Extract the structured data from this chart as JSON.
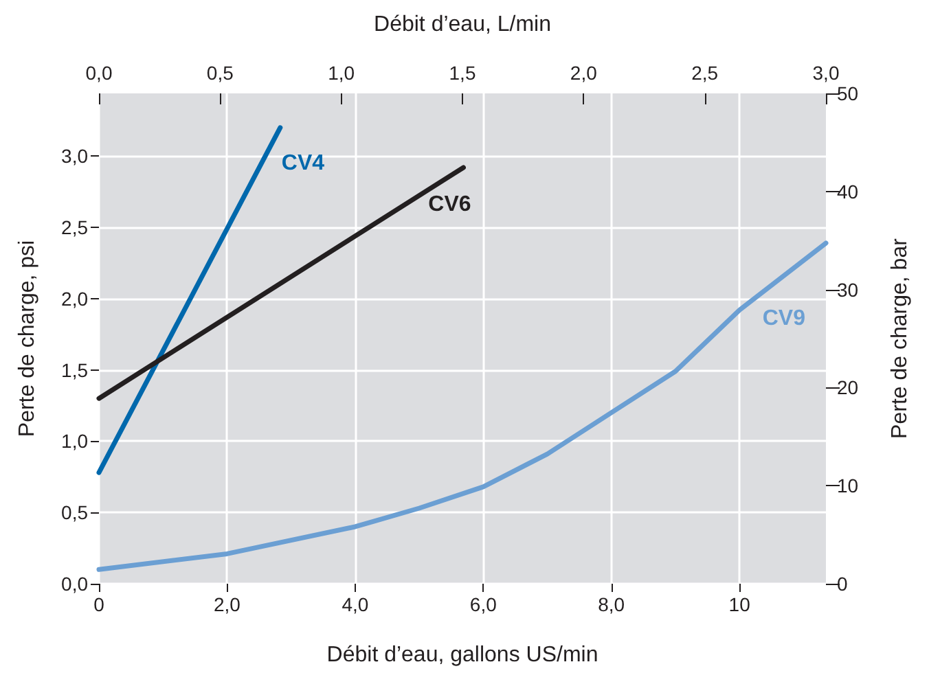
{
  "chart_data": {
    "type": "line",
    "xlabel": "Débit d’eau, gallons US/min",
    "x2label": "Débit d’eau, L/min",
    "ylabel": "Perte de charge, psi",
    "y2label": "Perte de charge, bar",
    "xlim": [
      0,
      11.35
    ],
    "xticks": [
      {
        "value": 0,
        "label": "0"
      },
      {
        "value": 2,
        "label": "2,0"
      },
      {
        "value": 4,
        "label": "4,0"
      },
      {
        "value": 6,
        "label": "6,0"
      },
      {
        "value": 8,
        "label": "8,0"
      },
      {
        "value": 10,
        "label": "10"
      }
    ],
    "x2lim": [
      0,
      3.0
    ],
    "x2ticks": [
      {
        "value": 0,
        "label": "0,0"
      },
      {
        "value": 0.5,
        "label": "0,5"
      },
      {
        "value": 1,
        "label": "1,0"
      },
      {
        "value": 1.5,
        "label": "1,5"
      },
      {
        "value": 2,
        "label": "2,0"
      },
      {
        "value": 2.5,
        "label": "2,5"
      },
      {
        "value": 3,
        "label": "3,0"
      }
    ],
    "ylim": [
      0,
      3.44
    ],
    "yticks": [
      {
        "value": 0,
        "label": "0,0"
      },
      {
        "value": 0.5,
        "label": "0,5"
      },
      {
        "value": 1,
        "label": "1,0"
      },
      {
        "value": 1.5,
        "label": "1,5"
      },
      {
        "value": 2,
        "label": "2,0"
      },
      {
        "value": 2.5,
        "label": "2,5"
      },
      {
        "value": 3,
        "label": "3,0"
      }
    ],
    "y2lim": [
      0,
      50
    ],
    "y2ticks": [
      0,
      10,
      20,
      30,
      40,
      50
    ],
    "grid": true,
    "legend": false,
    "marker": "none",
    "line_style": "solid",
    "series": [
      {
        "name": "CV4",
        "color": "#0068ac",
        "x": [
          0,
          2.83
        ],
        "values": [
          0.78,
          3.2
        ]
      },
      {
        "name": "CV6",
        "color": "#231f20",
        "x": [
          0,
          5.69
        ],
        "values": [
          1.3,
          2.92
        ]
      },
      {
        "name": "CV9",
        "color": "#6b9fd3",
        "x": [
          0,
          2,
          4,
          5,
          6,
          7,
          8,
          9,
          10,
          11.35
        ],
        "values": [
          0.1,
          0.21,
          0.4,
          0.53,
          0.68,
          0.91,
          1.2,
          1.49,
          1.92,
          2.39
        ]
      }
    ]
  }
}
